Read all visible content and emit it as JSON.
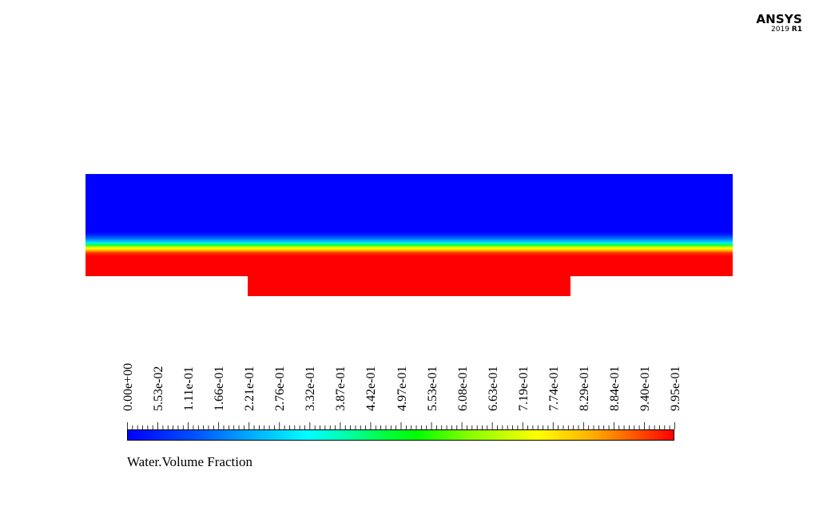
{
  "brand": {
    "name": "ANSYS",
    "year": "2019",
    "release": "R1"
  },
  "contour": {
    "variable": "Water.Volume Fraction",
    "levels": [
      "0.00e+00",
      "5.53e-02",
      "1.11e-01",
      "1.66e-01",
      "2.21e-01",
      "2.76e-01",
      "3.32e-01",
      "3.87e-01",
      "4.42e-01",
      "4.97e-01",
      "5.53e-01",
      "6.08e-01",
      "6.63e-01",
      "7.19e-01",
      "7.74e-01",
      "8.29e-01",
      "8.84e-01",
      "9.40e-01",
      "9.95e-01"
    ],
    "colormap": [
      "#0000ff",
      "#00ffff",
      "#00ff00",
      "#ffff00",
      "#ff0000"
    ]
  }
}
